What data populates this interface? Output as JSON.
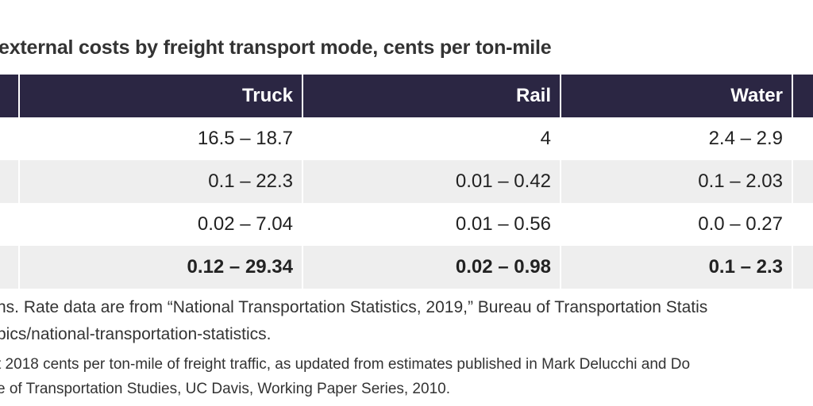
{
  "title": "external costs by freight transport mode, cents per ton-mile",
  "table": {
    "headers": [
      "",
      "Truck",
      "Rail",
      "Water",
      ""
    ],
    "rows": [
      [
        "",
        "16.5 – 18.7",
        "4",
        "2.4 – 2.9",
        ""
      ],
      [
        "",
        "0.1 – 22.3",
        "0.01 – 0.42",
        "0.1 – 2.03",
        ""
      ],
      [
        "",
        "0.02 – 7.04",
        "0.01 – 0.56",
        "0.0 – 0.27",
        ""
      ],
      [
        "",
        "0.12 – 29.34",
        "0.02 – 0.98",
        "0.1 – 2.3",
        ""
      ]
    ]
  },
  "notes": {
    "line1": "ns. Rate data are from “National Transportation Statistics, 2019,” Bureau of Transportation Statis",
    "line2": "pics/national-transportation-statistics.",
    "line3": "t 2018 cents per ton-mile of freight traffic, as updated from estimates published in Mark Delucchi and Do",
    "line4": "e of Transportation Studies, UC Davis, Working Paper Series, 2010."
  },
  "colors": {
    "header_bg": "#2b2643",
    "shaded_row": "#eeeeee",
    "text": "#222222"
  }
}
